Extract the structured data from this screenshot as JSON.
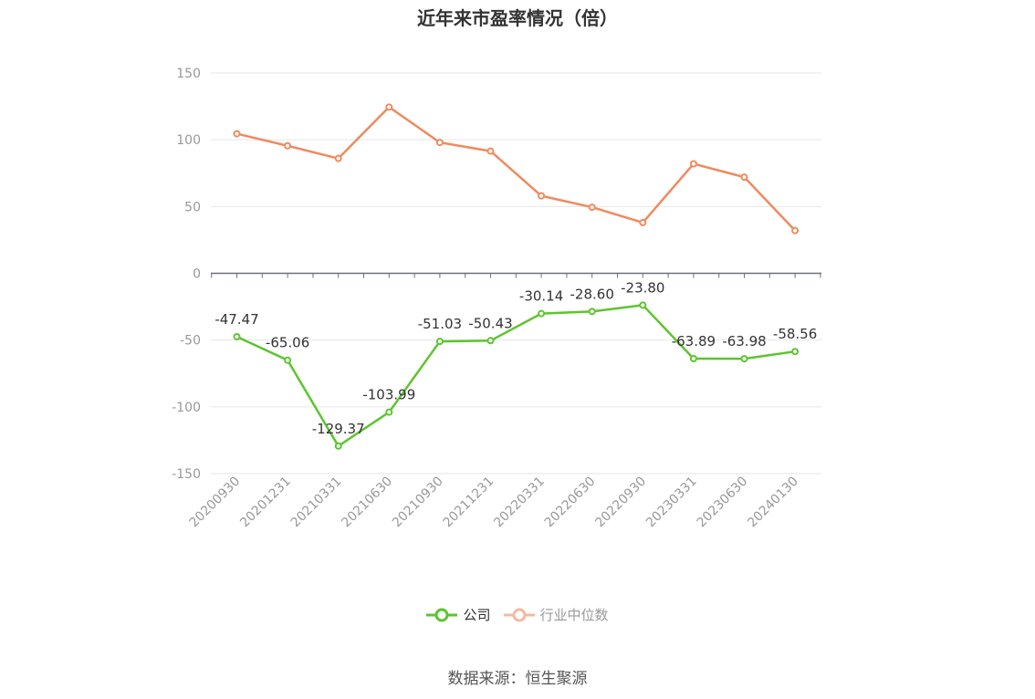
{
  "chart_data": {
    "type": "line",
    "title": "近年来市盈率情况（倍）",
    "categories": [
      "20200930",
      "20201231",
      "20210331",
      "20210630",
      "20210930",
      "20211231",
      "20220331",
      "20220630",
      "20220930",
      "20230331",
      "20230630",
      "20240130"
    ],
    "series": [
      {
        "name": "公司",
        "color": "#5cc52e",
        "values": [
          -47.47,
          -65.06,
          -129.37,
          -103.99,
          -51.03,
          -50.43,
          -30.14,
          -28.6,
          -23.8,
          -63.89,
          -63.98,
          -58.56
        ],
        "labels": [
          "-47.47",
          "-65.06",
          "-129.37",
          "-103.99",
          "-51.03",
          "-50.43",
          "-30.14",
          "-28.60",
          "-23.80",
          "-63.89",
          "-63.98",
          "-58.56"
        ]
      },
      {
        "name": "行业中位数",
        "color": "#f08a5d",
        "values": [
          104.5,
          95.5,
          86,
          124.5,
          98,
          91.5,
          58,
          49.5,
          38,
          82,
          72,
          32
        ]
      }
    ],
    "yticks": [
      150,
      100,
      50,
      0,
      -50,
      -100,
      -150
    ],
    "ylim": [
      -150,
      150
    ],
    "grid": true,
    "legend_position": "bottom",
    "source": "数据来源：恒生聚源"
  }
}
